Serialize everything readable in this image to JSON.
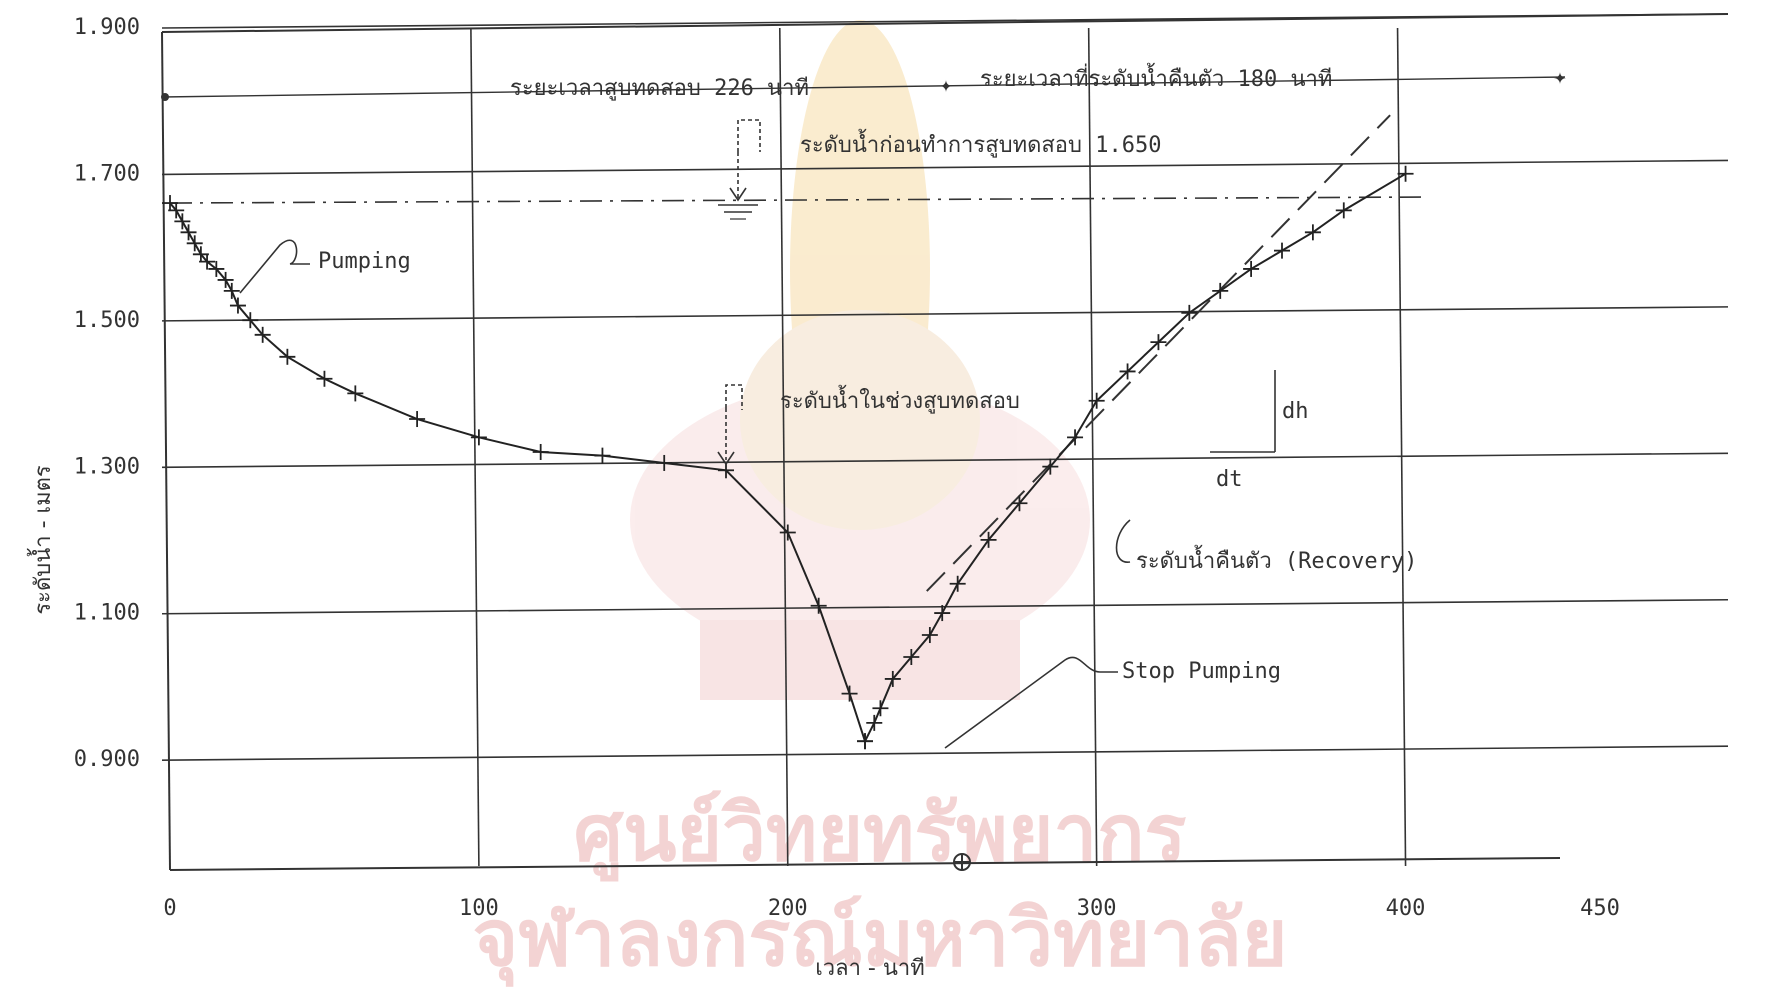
{
  "chart_data": {
    "type": "line",
    "xlabel": "เวลา - นาที",
    "ylabel": "ระดับน้ำ - เมตร",
    "xlim": [
      0,
      450
    ],
    "ylim": [
      0.75,
      1.9
    ],
    "x_ticks": [
      "0",
      "100",
      "200",
      "300",
      "400",
      "450"
    ],
    "y_ticks": [
      "0.900",
      "1.100",
      "1.300",
      "1.500",
      "1.700",
      "1.900"
    ],
    "y_tick_values": [
      0.9,
      1.1,
      1.3,
      1.5,
      1.7,
      1.9
    ],
    "x_tick_values": [
      0,
      100,
      200,
      300,
      400,
      450
    ],
    "grid": true,
    "series": [
      {
        "name": "Pumping",
        "x": [
          0,
          2,
          4,
          6,
          8,
          10,
          12,
          15,
          18,
          20,
          22,
          26,
          30,
          38,
          50,
          60,
          80,
          100,
          120,
          140,
          160,
          180,
          200,
          210,
          220,
          225
        ],
        "y": [
          1.65,
          1.64,
          1.625,
          1.61,
          1.595,
          1.58,
          1.57,
          1.56,
          1.545,
          1.53,
          1.51,
          1.49,
          1.47,
          1.44,
          1.41,
          1.39,
          1.355,
          1.33,
          1.31,
          1.305,
          1.295,
          1.285,
          1.2,
          1.1,
          0.98,
          0.915
        ]
      },
      {
        "name": "ระดับน้ำคืนตัว (Recovery)",
        "x": [
          225,
          228,
          230,
          234,
          240,
          246,
          250,
          255,
          265,
          275,
          285,
          293,
          300,
          310,
          320,
          330,
          340,
          350,
          360,
          370,
          380,
          400
        ],
        "y": [
          0.915,
          0.94,
          0.96,
          1.0,
          1.03,
          1.06,
          1.09,
          1.13,
          1.19,
          1.24,
          1.29,
          1.33,
          1.38,
          1.42,
          1.46,
          1.5,
          1.53,
          1.56,
          1.585,
          1.61,
          1.64,
          1.69
        ]
      }
    ],
    "tangent_line": {
      "x": [
        245,
        395
      ],
      "y": [
        1.12,
        1.77
      ]
    },
    "static_level": 1.65,
    "annotations": {
      "pumping_label": "Pumping",
      "stop_pumping_label": "Stop Pumping",
      "recovery_label": "ระดับน้ำคืนตัว (Recovery)",
      "static_level_label": "ระดับน้ำก่อนทำการสูบทดสอบ 1.650",
      "pumping_level_label": "ระดับน้ำในช่วงสูบทดสอบ",
      "pump_duration_label": "ระยะเวลาสูบทดสอบ 226 นาที",
      "recovery_duration_label": "ระยะเวลาที่ระดับน้ำคืนตัว 180 นาที",
      "dh_label": "dh",
      "dt_label": "dt"
    },
    "watermark": {
      "line1": "ศูนย์วิทยทรัพยากร",
      "line2": "จุฬาลงกรณ์มหาวิทยาลัย"
    },
    "colors": {
      "ink": "#333333",
      "watermark": "#f3d3d3",
      "grid": "#444444"
    }
  }
}
